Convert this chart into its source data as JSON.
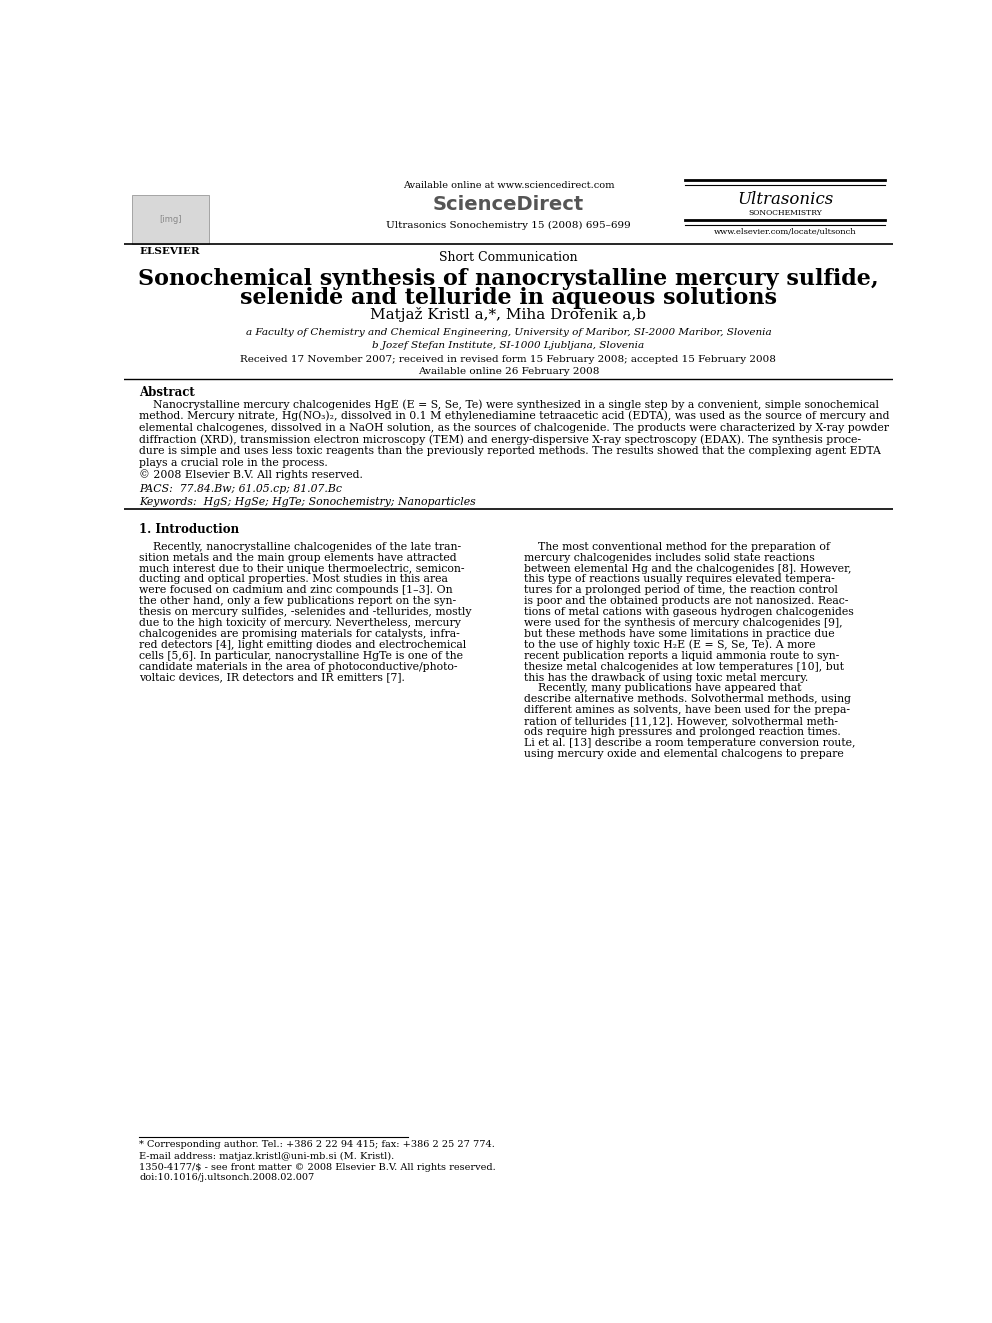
{
  "bg_color": "#ffffff",
  "header_available_online": "Available online at www.sciencedirect.com",
  "header_sciencedirect": "ScienceDirect",
  "header_journal_line": "Ultrasonics Sonochemistry 15 (2008) 695–699",
  "header_ultrasonics": "Ultrasonics",
  "header_sonochemistry": "SONOCHEMISTRY",
  "header_website": "www.elsevier.com/locate/ultsonch",
  "elsevier_label": "ELSEVIER",
  "article_type": "Short Communication",
  "title_line1": "Sonochemical synthesis of nanocrystalline mercury sulfide,",
  "title_line2": "selenide and telluride in aqueous solutions",
  "authors": "Matjaž Kristl a,*, Miha Drofenik a,b",
  "affil_a": "a Faculty of Chemistry and Chemical Engineering, University of Maribor, SI-2000 Maribor, Slovenia",
  "affil_b": "b Jozef Stefan Institute, SI-1000 Ljubljana, Slovenia",
  "received": "Received 17 November 2007; received in revised form 15 February 2008; accepted 15 February 2008",
  "available": "Available online 26 February 2008",
  "abstract_title": "Abstract",
  "copyright": "© 2008 Elsevier B.V. All rights reserved.",
  "pacs": "PACS:  77.84.Bw; 61.05.cp; 81.07.Bc",
  "keywords": "Keywords:  HgS; HgSe; HgTe; Sonochemistry; Nanoparticles",
  "section1_title": "1. Introduction",
  "footnote_star": "* Corresponding author. Tel.: +386 2 22 94 415; fax: +386 2 25 27 774.",
  "footnote_email": "E-mail address: matjaz.kristl@uni-mb.si (M. Kristl).",
  "footnote_issn": "1350-4177/$ - see front matter © 2008 Elsevier B.V. All rights reserved.",
  "footnote_doi": "doi:10.1016/j.ultsonch.2008.02.007",
  "abstract_lines": [
    "    Nanocrystalline mercury chalcogenides HgE (E = S, Se, Te) were synthesized in a single step by a convenient, simple sonochemical",
    "method. Mercury nitrate, Hg(NO₃)₂, dissolved in 0.1 M ethylenediamine tetraacetic acid (EDTA), was used as the source of mercury and",
    "elemental chalcogenes, dissolved in a NaOH solution, as the sources of chalcogenide. The products were characterized by X-ray powder",
    "diffraction (XRD), transmission electron microscopy (TEM) and energy-dispersive X-ray spectroscopy (EDAX). The synthesis proce-",
    "dure is simple and uses less toxic reagents than the previously reported methods. The results showed that the complexing agent EDTA",
    "plays a crucial role in the process."
  ],
  "left_col_lines": [
    "    Recently, nanocrystalline chalcogenides of the late tran-",
    "sition metals and the main group elements have attracted",
    "much interest due to their unique thermoelectric, semicon-",
    "ducting and optical properties. Most studies in this area",
    "were focused on cadmium and zinc compounds [1–3]. On",
    "the other hand, only a few publications report on the syn-",
    "thesis on mercury sulfides, -selenides and -tellurides, mostly",
    "due to the high toxicity of mercury. Nevertheless, mercury",
    "chalcogenides are promising materials for catalysts, infra-",
    "red detectors [4], light emitting diodes and electrochemical",
    "cells [5,6]. In particular, nanocrystalline HgTe is one of the",
    "candidate materials in the area of photoconductive/photo-",
    "voltaic devices, IR detectors and IR emitters [7]."
  ],
  "right_col_lines": [
    "    The most conventional method for the preparation of",
    "mercury chalcogenides includes solid state reactions",
    "between elemental Hg and the chalcogenides [8]. However,",
    "this type of reactions usually requires elevated tempera-",
    "tures for a prolonged period of time, the reaction control",
    "is poor and the obtained products are not nanosized. Reac-",
    "tions of metal cations with gaseous hydrogen chalcogenides",
    "were used for the synthesis of mercury chalcogenides [9],",
    "but these methods have some limitations in practice due",
    "to the use of highly toxic H₂E (E = S, Se, Te). A more",
    "recent publication reports a liquid ammonia route to syn-",
    "thesize metal chalcogenides at low temperatures [10], but",
    "this has the drawback of using toxic metal mercury.",
    "    Recently, many publications have appeared that",
    "describe alternative methods. Solvothermal methods, using",
    "different amines as solvents, have been used for the prepa-",
    "ration of tellurides [11,12]. However, solvothermal meth-",
    "ods require high pressures and prolonged reaction times.",
    "Li et al. [13] describe a room temperature conversion route,",
    "using mercury oxide and elemental chalcogens to prepare"
  ]
}
